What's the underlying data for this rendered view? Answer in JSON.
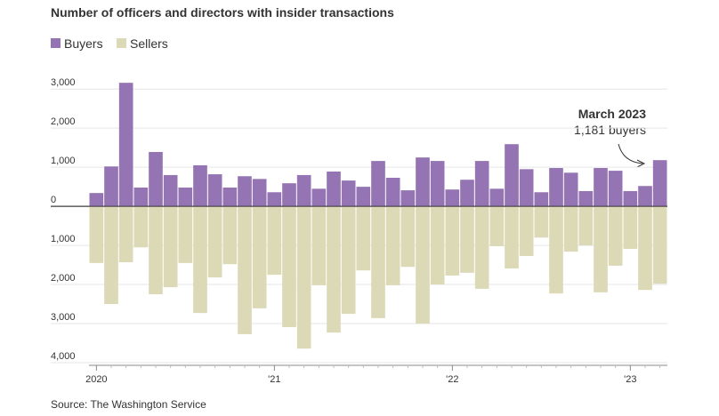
{
  "chart_data": {
    "type": "bar",
    "title": "Number of officers and directors with insider transactions",
    "source": "Source: The Washington Service",
    "annotation": {
      "title": "March 2023",
      "text": "1,181 buyers"
    },
    "categories": [
      "2020",
      null,
      null,
      null,
      null,
      null,
      null,
      null,
      null,
      null,
      null,
      null,
      "'21",
      null,
      null,
      null,
      null,
      null,
      null,
      null,
      null,
      null,
      null,
      null,
      "'22",
      null,
      null,
      null,
      null,
      null,
      null,
      null,
      null,
      null,
      null,
      null,
      "'23",
      null,
      null
    ],
    "series": [
      {
        "name": "Buyers",
        "color": "#9474b3",
        "values": [
          340,
          1020,
          3160,
          480,
          1390,
          800,
          480,
          1050,
          820,
          480,
          770,
          700,
          360,
          590,
          800,
          450,
          890,
          660,
          500,
          1160,
          730,
          410,
          1250,
          1160,
          430,
          680,
          1160,
          450,
          1590,
          950,
          360,
          980,
          860,
          390,
          980,
          910,
          390,
          520,
          1181
        ]
      },
      {
        "name": "Sellers",
        "color": "#dcd9b6",
        "values": [
          -1450,
          -2500,
          -1430,
          -1050,
          -2250,
          -2070,
          -1450,
          -2730,
          -1820,
          -1480,
          -3270,
          -2610,
          -1750,
          -3090,
          -3640,
          -2020,
          -3230,
          -2750,
          -1640,
          -2860,
          -2020,
          -1550,
          -3000,
          -2000,
          -1770,
          -1700,
          -2110,
          -1020,
          -1590,
          -1270,
          -800,
          -2230,
          -1160,
          -1000,
          -2200,
          -1520,
          -1090,
          -2140,
          -1980
        ]
      }
    ],
    "ylim": [
      -4000,
      3300
    ],
    "yticks": [
      {
        "value": 3000,
        "label": "3,000"
      },
      {
        "value": 2000,
        "label": "2,000"
      },
      {
        "value": 1000,
        "label": "1,000"
      },
      0,
      {
        "value": -1000,
        "label": "1,000"
      },
      {
        "value": -2000,
        "label": "2,000"
      },
      {
        "value": -3000,
        "label": "3,000"
      },
      {
        "value": -4000,
        "label": "4,000"
      }
    ],
    "grid": true
  }
}
